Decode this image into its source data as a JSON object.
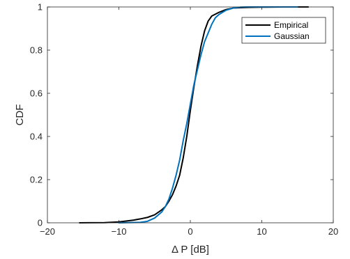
{
  "chart_data": {
    "type": "line",
    "title": "",
    "xlabel": "Δ P [dB]",
    "ylabel": "CDF",
    "xlim": [
      -20,
      20
    ],
    "ylim": [
      0,
      1
    ],
    "x_ticks": [
      -20,
      -10,
      0,
      10,
      20
    ],
    "y_ticks": [
      0,
      0.2,
      0.4,
      0.6,
      0.8,
      1
    ],
    "x_tick_labels": [
      "−20",
      "−10",
      "0",
      "10",
      "20"
    ],
    "y_tick_labels": [
      "0",
      "0.2",
      "0.4",
      "0.6",
      "0.8",
      "1"
    ],
    "grid": false,
    "legend_position": "top-right",
    "series": [
      {
        "name": "Empirical",
        "color": "#000000",
        "points": [
          [
            -15.5,
            0.0
          ],
          [
            -12,
            0.001
          ],
          [
            -10,
            0.004
          ],
          [
            -8,
            0.012
          ],
          [
            -7,
            0.018
          ],
          [
            -6,
            0.025
          ],
          [
            -5,
            0.037
          ],
          [
            -4,
            0.06
          ],
          [
            -3.5,
            0.075
          ],
          [
            -3,
            0.1
          ],
          [
            -2.5,
            0.13
          ],
          [
            -2,
            0.17
          ],
          [
            -1.5,
            0.22
          ],
          [
            -1,
            0.3
          ],
          [
            -0.5,
            0.4
          ],
          [
            0,
            0.52
          ],
          [
            0.5,
            0.63
          ],
          [
            1,
            0.73
          ],
          [
            1.5,
            0.82
          ],
          [
            2,
            0.89
          ],
          [
            2.5,
            0.935
          ],
          [
            3,
            0.958
          ],
          [
            4,
            0.975
          ],
          [
            5,
            0.988
          ],
          [
            6,
            0.995
          ],
          [
            8,
            0.998
          ],
          [
            10,
            0.999
          ],
          [
            13,
            1.0
          ],
          [
            16.5,
            1.0
          ]
        ]
      },
      {
        "name": "Gaussian",
        "color": "#0072bd",
        "points": [
          [
            -10,
            0.0
          ],
          [
            -7,
            0.002
          ],
          [
            -6,
            0.007
          ],
          [
            -5,
            0.022
          ],
          [
            -4,
            0.05
          ],
          [
            -3.5,
            0.075
          ],
          [
            -3,
            0.11
          ],
          [
            -2.5,
            0.16
          ],
          [
            -2,
            0.22
          ],
          [
            -1.5,
            0.29
          ],
          [
            -1,
            0.38
          ],
          [
            -0.5,
            0.46
          ],
          [
            0,
            0.55
          ],
          [
            0.5,
            0.64
          ],
          [
            1,
            0.71
          ],
          [
            1.5,
            0.78
          ],
          [
            2,
            0.84
          ],
          [
            2.5,
            0.88
          ],
          [
            3,
            0.92
          ],
          [
            3.5,
            0.95
          ],
          [
            4,
            0.965
          ],
          [
            5,
            0.985
          ],
          [
            6,
            0.995
          ],
          [
            7,
            0.999
          ],
          [
            8,
            1.0
          ],
          [
            15,
            1.0
          ]
        ]
      }
    ]
  }
}
